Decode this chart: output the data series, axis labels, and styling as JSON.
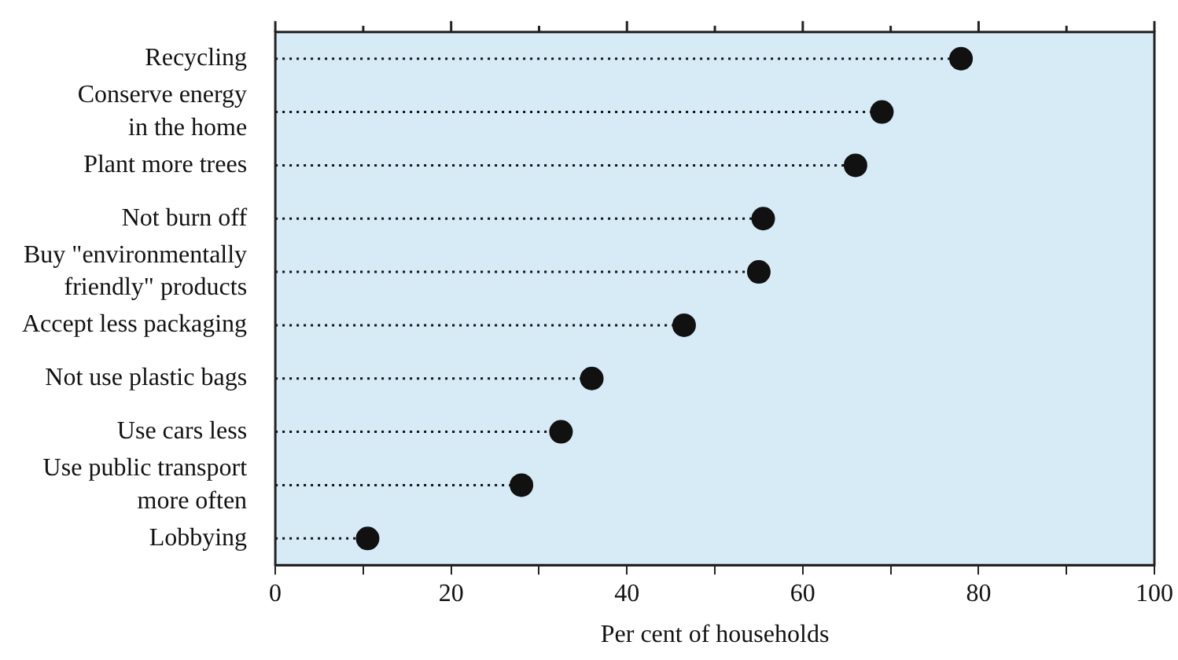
{
  "chart_data": {
    "type": "lollipop",
    "orientation": "horizontal",
    "xlabel": "Per cent of households",
    "categories": [
      "Recycling",
      "Conserve energy\nin the home",
      "Plant more trees",
      "Not burn off",
      "Buy \"environmentally\nfriendly\" products",
      "Accept less packaging",
      "Not use plastic bags",
      "Use cars less",
      "Use public transport\nmore often",
      "Lobbying"
    ],
    "values": [
      78,
      69,
      66,
      55.5,
      55,
      46.5,
      36,
      32.5,
      28,
      10.5
    ],
    "color": "#111111",
    "marker": "circle",
    "line_style": "dotted",
    "xlim": [
      0,
      100
    ],
    "xticks": [
      0,
      {
        "value": 10,
        "label": null
      },
      20,
      {
        "value": 30,
        "label": null
      },
      40,
      {
        "value": 50,
        "label": null
      },
      60,
      {
        "value": 70,
        "label": null
      },
      80,
      {
        "value": 90,
        "label": null
      },
      100
    ],
    "legend": false
  }
}
